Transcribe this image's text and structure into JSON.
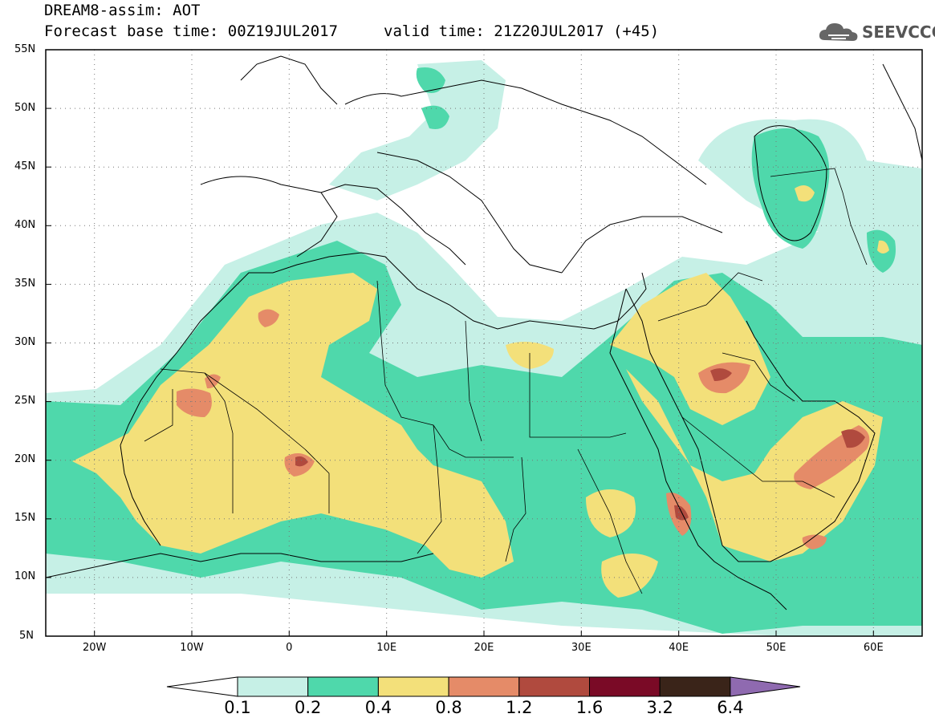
{
  "title": {
    "line1": "DREAM8-assim: AOT",
    "line2": "Forecast base time: 00Z19JUL2017",
    "valid": "valid time: 21Z20JUL2017 (+45)"
  },
  "logo": {
    "text": "SEEVCCC",
    "icon": "cloud-icon"
  },
  "map": {
    "lat_labels": [
      "55N",
      "50N",
      "45N",
      "40N",
      "35N",
      "30N",
      "25N",
      "20N",
      "15N",
      "10N",
      "5N"
    ],
    "lon_labels": [
      "20W",
      "10W",
      "0",
      "10E",
      "20E",
      "30E",
      "40E",
      "50E",
      "60E"
    ],
    "lon_range": [
      -25,
      65
    ],
    "lat_range": [
      5,
      55
    ]
  },
  "colorbar": {
    "labels": [
      "0.1",
      "0.2",
      "0.4",
      "0.8",
      "1.2",
      "1.6",
      "3.2",
      "6.4"
    ],
    "colors": [
      "#c6f0e6",
      "#4fd8ab",
      "#f3e07a",
      "#e58b68",
      "#b04a3e",
      "#7a0a26",
      "#3a2419",
      "#8f6ab0"
    ]
  }
}
